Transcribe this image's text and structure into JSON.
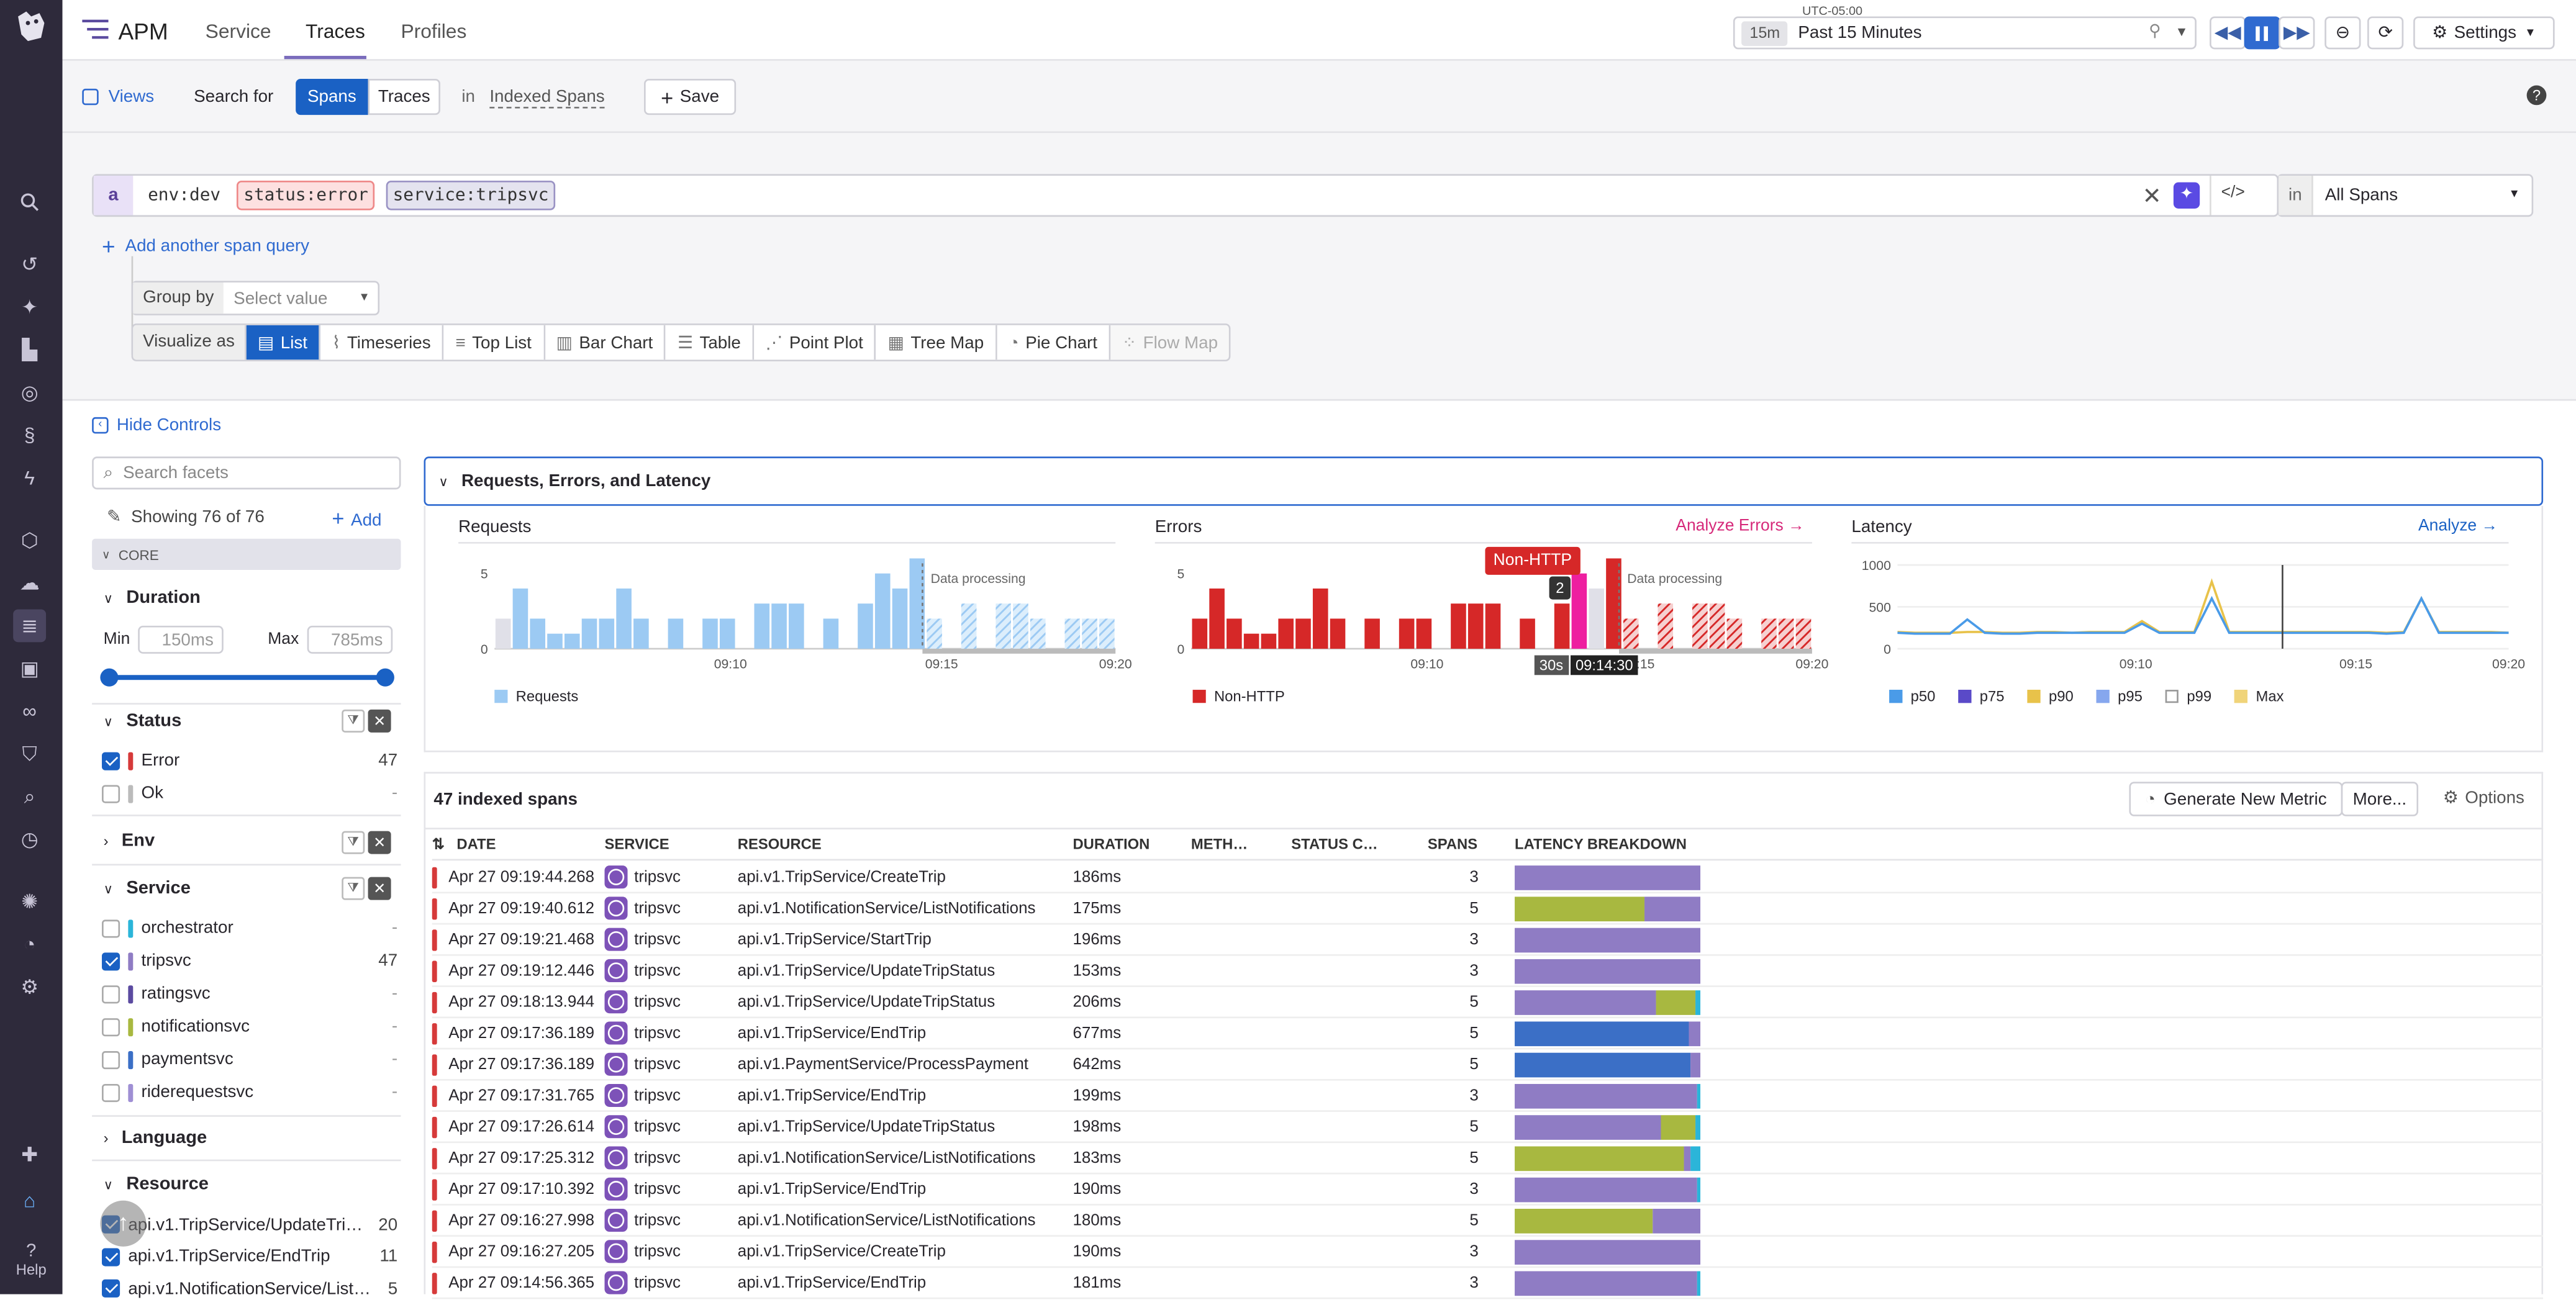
{
  "nav": {
    "app_name": "APM",
    "tabs": [
      "Service",
      "Traces",
      "Profiles"
    ],
    "active_tab": "Traces",
    "help_label": "Help"
  },
  "time": {
    "timezone": "UTC-05:00",
    "badge": "15m",
    "range": "Past 15 Minutes",
    "settings_label": "Settings"
  },
  "subbar": {
    "views_label": "Views",
    "search_for_label": "Search for",
    "spans_label": "Spans",
    "traces_label": "Traces",
    "in_label": "in",
    "indexed_spans_label": "Indexed Spans",
    "save_label": "Save"
  },
  "query": {
    "letter": "a",
    "chip1": "env:dev",
    "chip2": "status:error",
    "chip3": "service:tripsvc",
    "in_label": "in",
    "scope": "All Spans",
    "add_query_label": "Add another span query",
    "group_by_label": "Group by",
    "group_by_placeholder": "Select value",
    "visualize_as_label": "Visualize as",
    "viz_options": [
      "List",
      "Timeseries",
      "Top List",
      "Bar Chart",
      "Table",
      "Point Plot",
      "Tree Map",
      "Pie Chart",
      "Flow Map"
    ],
    "active_viz": "List"
  },
  "facets": {
    "hide_controls_label": "Hide Controls",
    "search_placeholder": "Search facets",
    "showing": "Showing 76 of 76",
    "add_label": "Add",
    "core_label": "CORE",
    "duration": {
      "label": "Duration",
      "min_label": "Min",
      "max_label": "Max",
      "min_value": "150ms",
      "max_value": "785ms"
    },
    "status": {
      "label": "Status",
      "items": [
        {
          "name": "Error",
          "count": "47",
          "checked": true,
          "color": "#d63a3a"
        },
        {
          "name": "Ok",
          "count": "-",
          "checked": false,
          "color": "#bbbbbb"
        }
      ]
    },
    "env_label": "Env",
    "service": {
      "label": "Service",
      "items": [
        {
          "name": "orchestrator",
          "count": "-",
          "checked": false,
          "color": "#2bb5d9"
        },
        {
          "name": "tripsvc",
          "count": "47",
          "checked": true,
          "color": "#8f7cc4"
        },
        {
          "name": "ratingsvc",
          "count": "-",
          "checked": false,
          "color": "#5b4aa0"
        },
        {
          "name": "notificationsvc",
          "count": "-",
          "checked": false,
          "color": "#a8b840"
        },
        {
          "name": "paymentsvc",
          "count": "-",
          "checked": false,
          "color": "#3b6fc6"
        },
        {
          "name": "riderequestsvc",
          "count": "-",
          "checked": false,
          "color": "#9f8fd4"
        }
      ]
    },
    "language_label": "Language",
    "resource": {
      "label": "Resource",
      "items": [
        {
          "name": "api.v1.TripService/UpdateTri…",
          "count": "20"
        },
        {
          "name": "api.v1.TripService/EndTrip",
          "count": "11"
        },
        {
          "name": "api.v1.NotificationService/List…",
          "count": "5"
        }
      ]
    }
  },
  "rel": {
    "title": "Requests, Errors, and Latency",
    "requests_title": "Requests",
    "errors_title": "Errors",
    "analyze_errors": "Analyze Errors",
    "latency_title": "Latency",
    "analyze": "Analyze",
    "data_processing": "Data processing",
    "non_http": "Non-HTTP",
    "tooltip_count": "2",
    "tooltip_interval": "30s",
    "tooltip_time": "09:14:30",
    "legend_requests": "Requests",
    "legend_non_http": "Non-HTTP",
    "latency_legend": [
      "p50",
      "p75",
      "p90",
      "p95",
      "p99",
      "Max"
    ]
  },
  "chart_data": [
    {
      "type": "bar",
      "title": "Requests",
      "x_ticks": [
        "09:10",
        "09:15",
        "09:20"
      ],
      "y_ticks": [
        "0",
        "5"
      ],
      "ylim": [
        0,
        6
      ],
      "series": [
        {
          "name": "Requests",
          "values": [
            2,
            4,
            2,
            1,
            1,
            2,
            2,
            4,
            2,
            0,
            2,
            0,
            2,
            2,
            0,
            3,
            3,
            3,
            0,
            2,
            0,
            3,
            5,
            4,
            6,
            2,
            0,
            3,
            0,
            3,
            3,
            2,
            0,
            2,
            2,
            2
          ]
        }
      ]
    },
    {
      "type": "bar",
      "title": "Errors",
      "x_ticks": [
        "09:10",
        "09:15",
        "09:20"
      ],
      "y_ticks": [
        "0",
        "5"
      ],
      "ylim": [
        0,
        6
      ],
      "series": [
        {
          "name": "Non-HTTP",
          "values": [
            2,
            4,
            2,
            1,
            1,
            2,
            2,
            4,
            2,
            0,
            2,
            0,
            2,
            2,
            0,
            3,
            3,
            3,
            0,
            2,
            0,
            3,
            5,
            4,
            6,
            2,
            0,
            3,
            0,
            3,
            3,
            2,
            0,
            2,
            2,
            2
          ]
        }
      ]
    },
    {
      "type": "line",
      "title": "Latency",
      "x_ticks": [
        "09:10",
        "09:15",
        "09:20"
      ],
      "y_ticks": [
        "0",
        "500",
        "1000"
      ],
      "ylim": [
        0,
        1000
      ],
      "series": [
        {
          "name": "p50",
          "values": [
            190,
            180,
            180,
            180,
            350,
            190,
            180,
            180,
            190,
            190,
            190,
            190,
            190,
            190,
            300,
            190,
            190,
            190,
            600,
            190,
            190,
            190,
            190,
            190,
            190,
            190,
            190,
            190,
            180,
            190,
            600,
            190,
            190,
            190,
            190,
            190
          ]
        },
        {
          "name": "Max",
          "values": [
            200,
            190,
            190,
            190,
            200,
            200,
            190,
            190,
            200,
            200,
            190,
            200,
            200,
            200,
            330,
            200,
            200,
            200,
            800,
            200,
            200,
            200,
            200,
            200,
            200,
            200,
            200,
            200,
            190,
            200,
            600,
            200,
            200,
            200,
            200,
            190
          ]
        }
      ]
    }
  ],
  "table": {
    "count_label": "47 indexed spans",
    "generate_metric_label": "Generate New Metric",
    "more_label": "More...",
    "options_label": "Options",
    "columns": [
      "DATE",
      "SERVICE",
      "RESOURCE",
      "DURATION",
      "METH…",
      "STATUS C…",
      "SPANS",
      "LATENCY BREAKDOWN"
    ],
    "rows": [
      {
        "date": "Apr 27 09:19:44.268",
        "service": "tripsvc",
        "resource": "api.v1.TripService/CreateTrip",
        "duration": "186ms",
        "spans": "3",
        "lat": [
          [
            "#8f7cc4",
            100
          ]
        ]
      },
      {
        "date": "Apr 27 09:19:40.612",
        "service": "tripsvc",
        "resource": "api.v1.NotificationService/ListNotifications",
        "duration": "175ms",
        "spans": "5",
        "lat": [
          [
            "#a8b840",
            70
          ],
          [
            "#8f7cc4",
            30
          ]
        ]
      },
      {
        "date": "Apr 27 09:19:21.468",
        "service": "tripsvc",
        "resource": "api.v1.TripService/StartTrip",
        "duration": "196ms",
        "spans": "3",
        "lat": [
          [
            "#8f7cc4",
            100
          ]
        ]
      },
      {
        "date": "Apr 27 09:19:12.446",
        "service": "tripsvc",
        "resource": "api.v1.TripService/UpdateTripStatus",
        "duration": "153ms",
        "spans": "3",
        "lat": [
          [
            "#8f7cc4",
            100
          ]
        ]
      },
      {
        "date": "Apr 27 09:18:13.944",
        "service": "tripsvc",
        "resource": "api.v1.TripService/UpdateTripStatus",
        "duration": "206ms",
        "spans": "5",
        "lat": [
          [
            "#8f7cc4",
            76
          ],
          [
            "#a8b840",
            21
          ],
          [
            "#2bb5d9",
            3
          ]
        ]
      },
      {
        "date": "Apr 27 09:17:36.189",
        "service": "tripsvc",
        "resource": "api.v1.TripService/EndTrip",
        "duration": "677ms",
        "spans": "5",
        "lat": [
          [
            "#3b6fc6",
            94
          ],
          [
            "#8f7cc4",
            6
          ]
        ]
      },
      {
        "date": "Apr 27 09:17:36.189",
        "service": "tripsvc",
        "resource": "api.v1.PaymentService/ProcessPayment",
        "duration": "642ms",
        "spans": "5",
        "lat": [
          [
            "#3b6fc6",
            95
          ],
          [
            "#8f7cc4",
            5
          ]
        ]
      },
      {
        "date": "Apr 27 09:17:31.765",
        "service": "tripsvc",
        "resource": "api.v1.TripService/EndTrip",
        "duration": "199ms",
        "spans": "3",
        "lat": [
          [
            "#8f7cc4",
            98
          ],
          [
            "#2bb5d9",
            2
          ]
        ]
      },
      {
        "date": "Apr 27 09:17:26.614",
        "service": "tripsvc",
        "resource": "api.v1.TripService/UpdateTripStatus",
        "duration": "198ms",
        "spans": "5",
        "lat": [
          [
            "#8f7cc4",
            79
          ],
          [
            "#a8b840",
            18
          ],
          [
            "#2bb5d9",
            3
          ]
        ]
      },
      {
        "date": "Apr 27 09:17:25.312",
        "service": "tripsvc",
        "resource": "api.v1.NotificationService/ListNotifications",
        "duration": "183ms",
        "spans": "5",
        "lat": [
          [
            "#a8b840",
            91
          ],
          [
            "#8f7cc4",
            4
          ],
          [
            "#2bb5d9",
            5
          ]
        ]
      },
      {
        "date": "Apr 27 09:17:10.392",
        "service": "tripsvc",
        "resource": "api.v1.TripService/EndTrip",
        "duration": "190ms",
        "spans": "3",
        "lat": [
          [
            "#8f7cc4",
            98
          ],
          [
            "#2bb5d9",
            2
          ]
        ]
      },
      {
        "date": "Apr 27 09:16:27.998",
        "service": "tripsvc",
        "resource": "api.v1.NotificationService/ListNotifications",
        "duration": "180ms",
        "spans": "5",
        "lat": [
          [
            "#a8b840",
            74
          ],
          [
            "#8f7cc4",
            26
          ]
        ]
      },
      {
        "date": "Apr 27 09:16:27.205",
        "service": "tripsvc",
        "resource": "api.v1.TripService/CreateTrip",
        "duration": "190ms",
        "spans": "3",
        "lat": [
          [
            "#8f7cc4",
            100
          ]
        ]
      },
      {
        "date": "Apr 27 09:14:56.365",
        "service": "tripsvc",
        "resource": "api.v1.TripService/EndTrip",
        "duration": "181ms",
        "spans": "3",
        "lat": [
          [
            "#8f7cc4",
            98
          ],
          [
            "#2bb5d9",
            2
          ]
        ]
      }
    ]
  }
}
